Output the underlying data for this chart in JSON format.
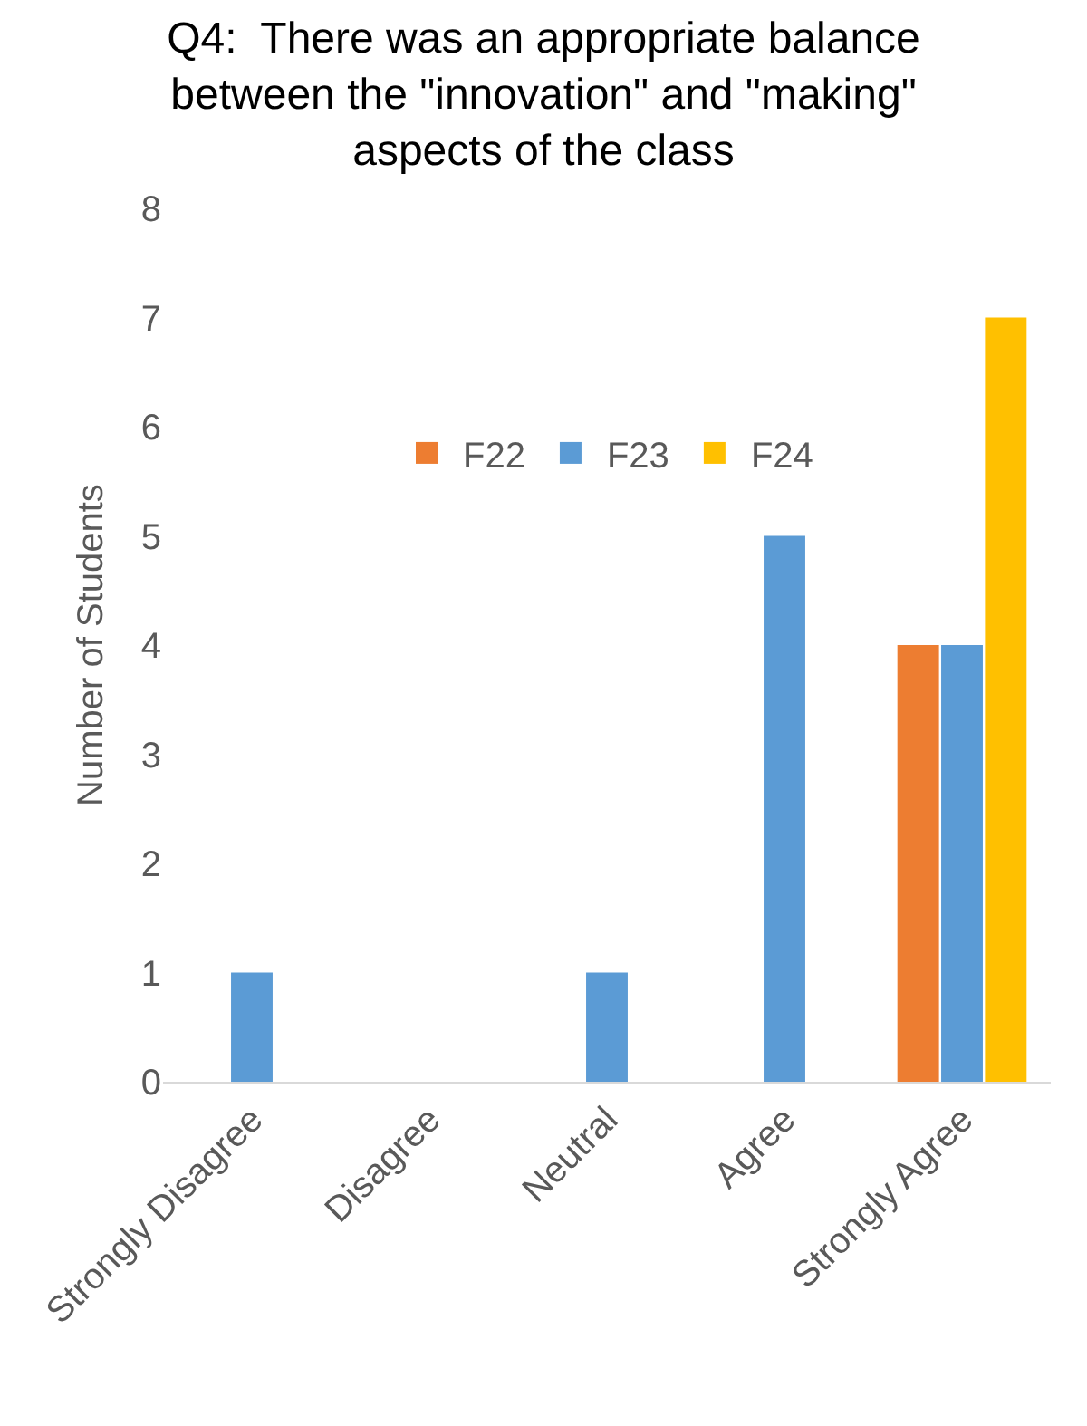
{
  "chart_data": {
    "type": "bar",
    "title": "Q4:  There was an appropriate balance between the \"innovation\" and \"making\" aspects of the class",
    "ylabel": "Number of Students",
    "categories": [
      "Strongly Disagree",
      "Disagree",
      "Neutral",
      "Agree",
      "Strongly Agree"
    ],
    "series": [
      {
        "name": "F22",
        "color": "#ed7d31",
        "values": [
          0,
          0,
          0,
          0,
          4
        ]
      },
      {
        "name": "F23",
        "color": "#5b9bd5",
        "values": [
          1,
          0,
          1,
          5,
          4
        ]
      },
      {
        "name": "F24",
        "color": "#ffc000",
        "values": [
          0,
          0,
          0,
          0,
          7
        ]
      }
    ],
    "ylim": [
      0,
      8
    ],
    "yticks": [
      0,
      1,
      2,
      3,
      4,
      5,
      6,
      7,
      8
    ],
    "grid": false,
    "legend": "top"
  }
}
